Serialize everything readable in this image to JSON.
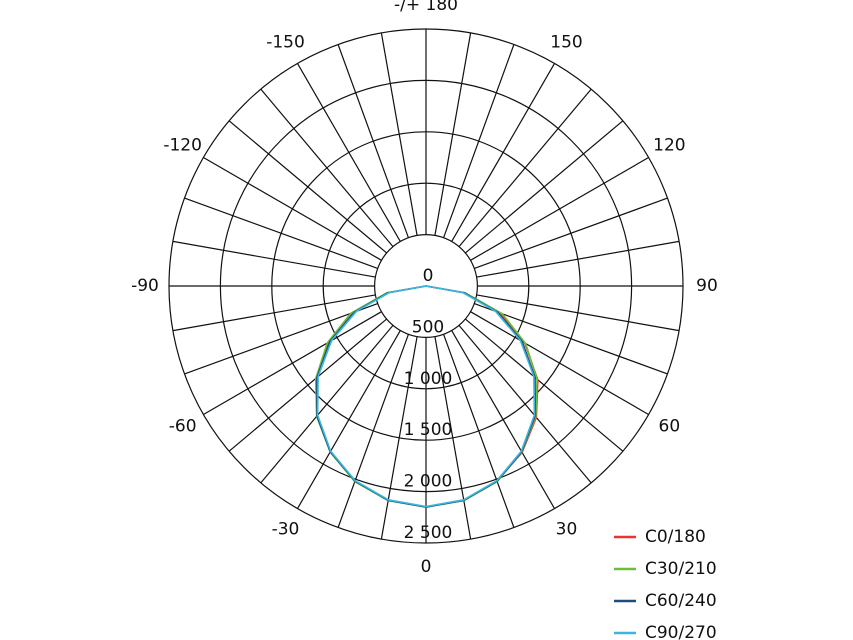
{
  "chart_data": {
    "type": "polar",
    "theta": [
      -90,
      -80,
      -70,
      -60,
      -50,
      -40,
      -30,
      -20,
      -10,
      0,
      10,
      20,
      30,
      40,
      50,
      60,
      70,
      80,
      90
    ],
    "series": [
      {
        "name": "C0/180",
        "color": "#e8352e",
        "values": [
          0,
          380,
          760,
          1100,
          1400,
          1650,
          1860,
          2020,
          2115,
          2150,
          2115,
          2020,
          1870,
          1670,
          1420,
          1110,
          760,
          380,
          0
        ]
      },
      {
        "name": "C30/210",
        "color": "#6cbf3c",
        "values": [
          0,
          390,
          780,
          1110,
          1400,
          1655,
          1865,
          2025,
          2120,
          2150,
          2120,
          2025,
          1865,
          1660,
          1410,
          1120,
          790,
          390,
          0
        ]
      },
      {
        "name": "C60/240",
        "color": "#1a4f80",
        "values": [
          0,
          375,
          740,
          1080,
          1385,
          1650,
          1862,
          2020,
          2117,
          2150,
          2117,
          2020,
          1862,
          1650,
          1385,
          1080,
          740,
          375,
          0
        ]
      },
      {
        "name": "C90/270",
        "color": "#3ab6e0",
        "values": [
          0,
          360,
          720,
          1060,
          1370,
          1640,
          1855,
          2015,
          2112,
          2145,
          2112,
          2015,
          1855,
          1640,
          1370,
          1060,
          720,
          360,
          0
        ]
      }
    ],
    "rlim": [
      0,
      2500
    ],
    "rticks": [
      0,
      500,
      {
        "value": 1000,
        "label": "1 000"
      },
      {
        "value": 1500,
        "label": "1 500"
      },
      {
        "value": 2000,
        "label": "2 000"
      },
      {
        "value": 2500,
        "label": "2 500"
      }
    ],
    "thetaticks": [
      0,
      30,
      60,
      90,
      120,
      150,
      {
        "value": 180,
        "label": "-/+ 180"
      },
      -150,
      -120,
      -90,
      -60,
      -30
    ],
    "theta_gridlines": [
      -170,
      -160,
      -150,
      -140,
      -130,
      -120,
      -110,
      -100,
      -90,
      -80,
      -70,
      -60,
      -50,
      -40,
      -30,
      -20,
      -10,
      0,
      10,
      20,
      30,
      40,
      50,
      60,
      70,
      80,
      90,
      100,
      110,
      120,
      130,
      140,
      150,
      160,
      170,
      180
    ],
    "legend": "lower right"
  }
}
